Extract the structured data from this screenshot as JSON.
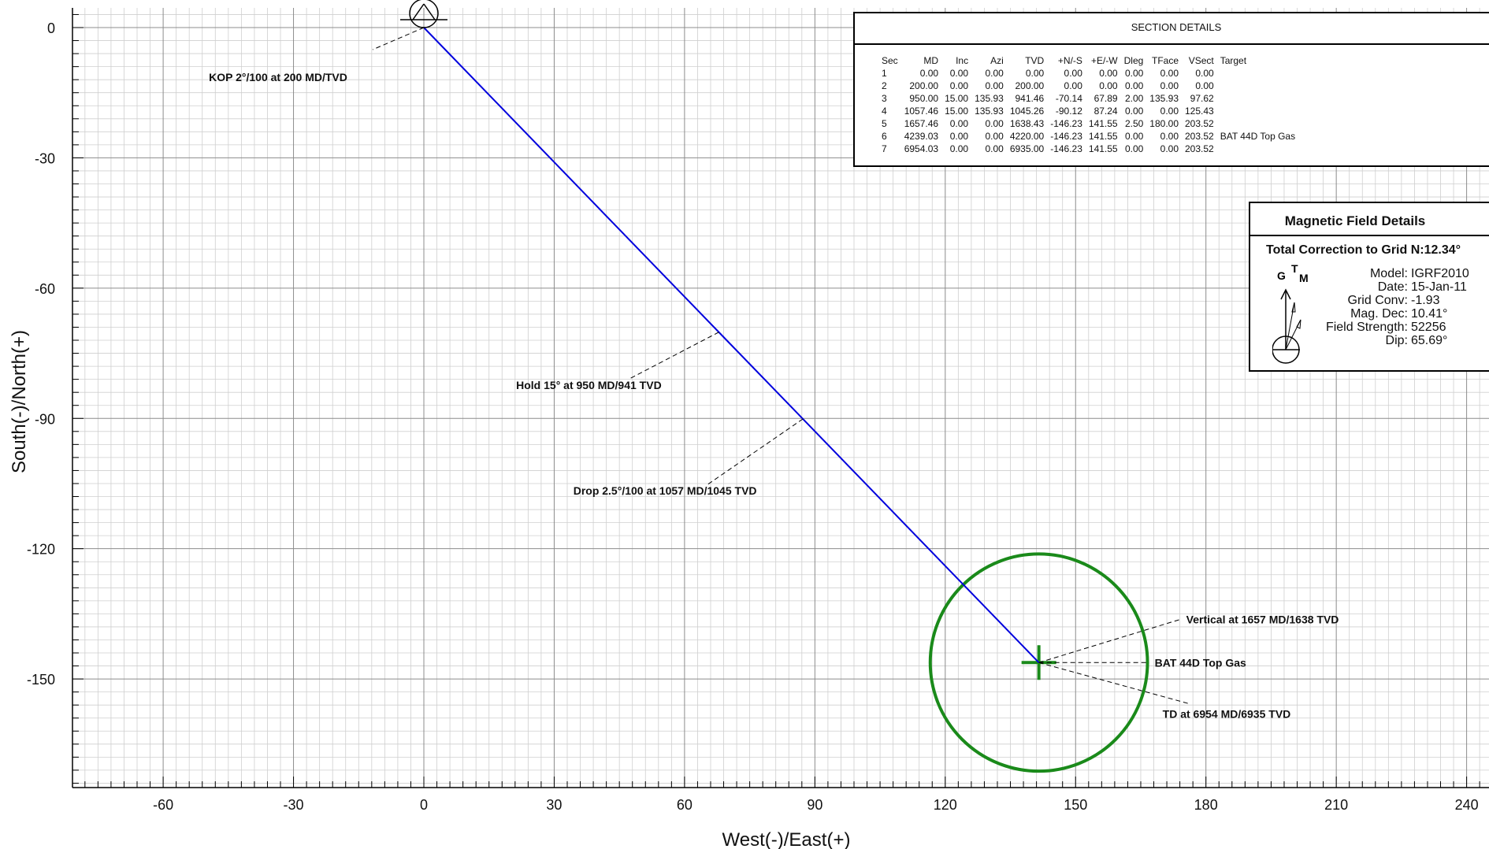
{
  "chart_data": {
    "type": "line",
    "xlabel": "West(-)/East(+)",
    "ylabel": "South(-)/North(+)",
    "xlim": [
      -80,
      245
    ],
    "ylim": [
      -175,
      5
    ],
    "x_ticks": [
      -60,
      -30,
      0,
      30,
      60,
      90,
      120,
      150,
      180,
      210,
      240
    ],
    "y_ticks": [
      0,
      -30,
      -60,
      -90,
      -120,
      -150
    ],
    "grid": true,
    "series": [
      {
        "color": "#0000dd",
        "points": [
          {
            "x": 0.0,
            "y": 0.0
          },
          {
            "x": 0.0,
            "y": 0.0
          },
          {
            "x": 67.89,
            "y": -70.14
          },
          {
            "x": 87.24,
            "y": -90.12
          },
          {
            "x": 141.55,
            "y": -146.23
          },
          {
            "x": 141.55,
            "y": -146.23
          },
          {
            "x": 141.55,
            "y": -146.23
          }
        ]
      }
    ],
    "target": {
      "name": "BAT 44D Top Gas",
      "x": 141.55,
      "y": -146.23,
      "radius": 25,
      "color": "#1a8a1a"
    },
    "annotations": [
      {
        "text": "KOP 2°/100 at 200 MD/TVD",
        "x": 0.0,
        "y": 0.0
      },
      {
        "text": "Hold 15° at 950 MD/941 TVD",
        "x": 67.89,
        "y": -70.14
      },
      {
        "text": "Drop 2.5°/100 at 1057 MD/1045 TVD",
        "x": 87.24,
        "y": -90.12
      },
      {
        "text": "Vertical at 1657 MD/1638 TVD",
        "x": 141.55,
        "y": -146.23
      },
      {
        "text": "BAT 44D Top Gas",
        "x": 141.55,
        "y": -146.23
      },
      {
        "text": "TD at 6954 MD/6935 TVD",
        "x": 141.55,
        "y": -146.23
      }
    ]
  },
  "section_details": {
    "title": "SECTION DETAILS",
    "columns": [
      "Sec",
      "MD",
      "Inc",
      "Azi",
      "TVD",
      "+N/-S",
      "+E/-W",
      "Dleg",
      "TFace",
      "VSect",
      "Target"
    ],
    "rows": [
      [
        "1",
        "0.00",
        "0.00",
        "0.00",
        "0.00",
        "0.00",
        "0.00",
        "0.00",
        "0.00",
        "0.00",
        ""
      ],
      [
        "2",
        "200.00",
        "0.00",
        "0.00",
        "200.00",
        "0.00",
        "0.00",
        "0.00",
        "0.00",
        "0.00",
        ""
      ],
      [
        "3",
        "950.00",
        "15.00",
        "135.93",
        "941.46",
        "-70.14",
        "67.89",
        "2.00",
        "135.93",
        "97.62",
        ""
      ],
      [
        "4",
        "1057.46",
        "15.00",
        "135.93",
        "1045.26",
        "-90.12",
        "87.24",
        "0.00",
        "0.00",
        "125.43",
        ""
      ],
      [
        "5",
        "1657.46",
        "0.00",
        "0.00",
        "1638.43",
        "-146.23",
        "141.55",
        "2.50",
        "180.00",
        "203.52",
        ""
      ],
      [
        "6",
        "4239.03",
        "0.00",
        "0.00",
        "4220.00",
        "-146.23",
        "141.55",
        "0.00",
        "0.00",
        "203.52",
        "BAT 44D Top Gas"
      ],
      [
        "7",
        "6954.03",
        "0.00",
        "0.00",
        "6935.00",
        "-146.23",
        "141.55",
        "0.00",
        "0.00",
        "203.52",
        ""
      ]
    ]
  },
  "magnetic": {
    "title": "Magnetic Field Details",
    "correction_label": "Total Correction to Grid N:",
    "correction_value": "12.34°",
    "compass_labels": {
      "grid": "G",
      "true": "T",
      "mag": "M"
    },
    "rows": [
      {
        "label": "Model:",
        "value": "IGRF2010"
      },
      {
        "label": "Date:",
        "value": "15-Jan-11"
      },
      {
        "label": "Grid Conv:",
        "value": "-1.93"
      },
      {
        "label": "Mag. Dec:",
        "value": "10.41°"
      },
      {
        "label": "Field Strength:",
        "value": "52256"
      },
      {
        "label": "Dip:",
        "value": "65.69°"
      }
    ]
  }
}
